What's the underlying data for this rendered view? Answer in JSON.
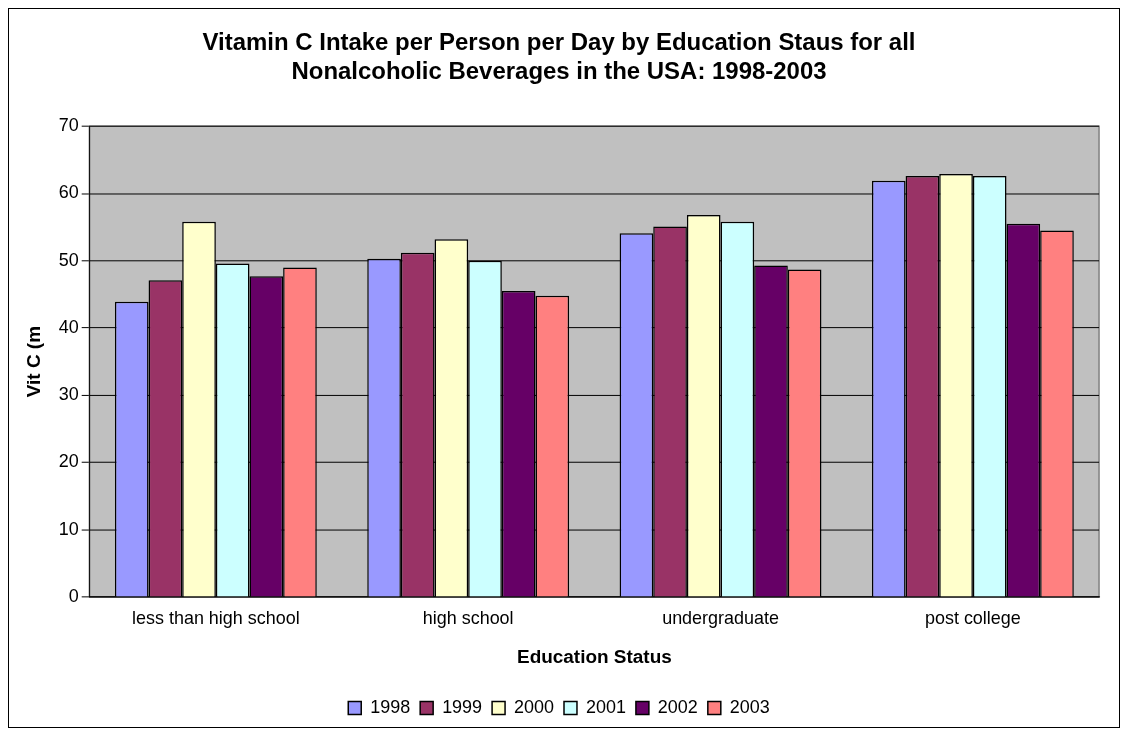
{
  "chart_data": {
    "type": "bar",
    "title": [
      "Vitamin C Intake per Person per Day by Education Staus for all",
      "Nonalcoholic Beverages in the USA: 1998-2003"
    ],
    "xlabel": "Education Status",
    "ylabel": "Vit C (m",
    "categories": [
      "less than high school",
      "high school",
      "undergraduate",
      "post college"
    ],
    "series": [
      {
        "name": "1998",
        "color": "#9999ff",
        "values": [
          43.9,
          50.3,
          54.1,
          61.9
        ]
      },
      {
        "name": "1999",
        "color": "#993366",
        "values": [
          47.1,
          51.2,
          55.1,
          62.6
        ]
      },
      {
        "name": "2000",
        "color": "#ffffcc",
        "values": [
          55.8,
          53.2,
          56.8,
          62.9
        ]
      },
      {
        "name": "2001",
        "color": "#ccffff",
        "values": [
          49.6,
          50.0,
          55.8,
          62.6
        ]
      },
      {
        "name": "2002",
        "color": "#660066",
        "values": [
          47.7,
          45.5,
          49.3,
          55.5
        ]
      },
      {
        "name": "2003",
        "color": "#ff8080",
        "values": [
          49.0,
          44.8,
          48.7,
          54.5
        ]
      }
    ],
    "ylim": [
      0,
      70
    ],
    "yticks": [
      0,
      10,
      20,
      30,
      40,
      50,
      60,
      70
    ],
    "grid": "y",
    "legend": "bottom"
  }
}
